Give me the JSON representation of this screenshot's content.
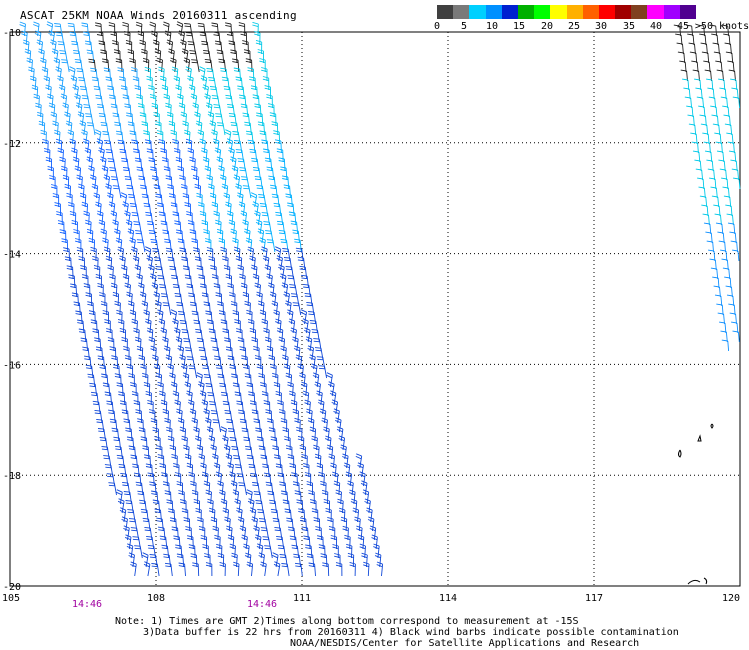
{
  "title": "ASCAT 25KM NOAA Winds 20160311 ascending",
  "colorbar": {
    "colors": [
      "#404040",
      "#7a7a7a",
      "#00d0ff",
      "#0090ff",
      "#0020d0",
      "#00b000",
      "#00ff00",
      "#ffff00",
      "#ffb000",
      "#ff6000",
      "#ff0000",
      "#a00000",
      "#804020",
      "#ff00ff",
      "#a000ff",
      "#500090"
    ],
    "labels": [
      "0",
      "5",
      "10",
      "15",
      "20",
      "25",
      "30",
      "35",
      "40",
      "45",
      ">50 knots"
    ]
  },
  "map": {
    "lat_labels": [
      "-10",
      "-12",
      "-14",
      "-16",
      "-18",
      "-20"
    ],
    "lon_labels": [
      "105",
      "108",
      "111",
      "114",
      "117",
      "120"
    ],
    "lat_range": [
      -20,
      -10
    ],
    "lon_range": [
      105,
      120
    ],
    "time_labels": [
      "14:46",
      "14:46"
    ],
    "time_color": "#a000a0"
  },
  "notes": {
    "line1": "Note: 1) Times are GMT 2)Times along bottom correspond to measurement at -15S",
    "line2": "3)Data buffer is 22 hrs from 20160311 4) Black wind barbs indicate possible contamination",
    "line3": "NOAA/NESDIS/Center for Satellite Applications and Research"
  }
}
